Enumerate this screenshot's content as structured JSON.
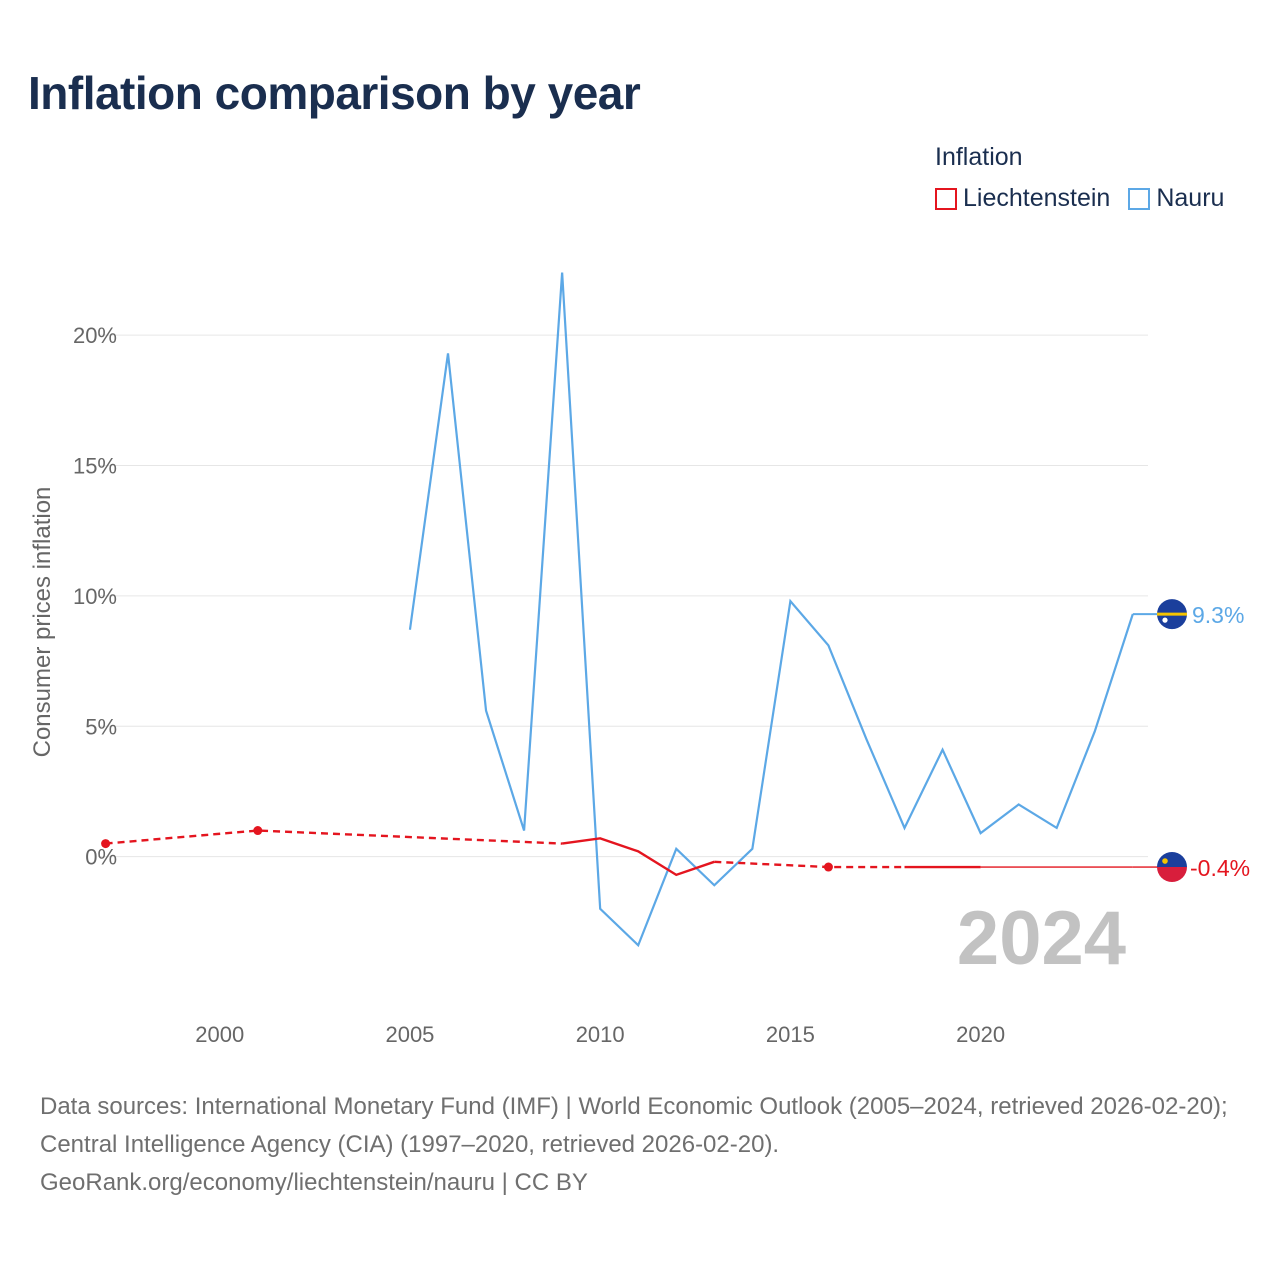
{
  "title": "Inflation comparison by year",
  "legend": {
    "title": "Inflation",
    "items": [
      {
        "label": "Liechtenstein",
        "color": "#e4151f"
      },
      {
        "label": "Nauru",
        "color": "#5ca8e6"
      }
    ]
  },
  "chart_data": {
    "type": "line",
    "title": "Inflation comparison by year",
    "xlabel": "",
    "ylabel": "Consumer prices inflation",
    "xlim": [
      1996.8,
      2024.4
    ],
    "ylim": [
      -5.5,
      22.5
    ],
    "x_ticks": [
      2000,
      2005,
      2010,
      2015,
      2020
    ],
    "y_ticks": [
      0,
      5,
      10,
      15,
      20
    ],
    "y_tick_labels": [
      "0%",
      "5%",
      "10%",
      "15%",
      "20%"
    ],
    "grid": true,
    "year_label": "2024",
    "series": [
      {
        "name": "Liechtenstein",
        "color": "#e4151f",
        "end_label": "-0.4%",
        "points": [
          {
            "x": 1997,
            "y": 0.5
          },
          {
            "x": 2001,
            "y": 1.0
          },
          {
            "x": 2009,
            "y": 0.5
          },
          {
            "x": 2010,
            "y": 0.7
          },
          {
            "x": 2011,
            "y": 0.2
          },
          {
            "x": 2012,
            "y": -0.7
          },
          {
            "x": 2013,
            "y": -0.2
          },
          {
            "x": 2016,
            "y": -0.4
          },
          {
            "x": 2020,
            "y": -0.4
          },
          {
            "x": 2024,
            "y": -0.4
          }
        ],
        "segments": [
          {
            "from": 1997,
            "to": 2009,
            "style": "dashed"
          },
          {
            "from": 2009,
            "to": 2013,
            "style": "solid"
          },
          {
            "from": 2013,
            "to": 2018,
            "style": "dashed"
          },
          {
            "from": 2018,
            "to": 2020,
            "style": "solid"
          },
          {
            "from": 2020,
            "to": 2024,
            "style": "thin"
          }
        ],
        "markers": [
          1997,
          2001,
          2016
        ]
      },
      {
        "name": "Nauru",
        "color": "#5ca8e6",
        "end_label": "9.3%",
        "points": [
          {
            "x": 2005,
            "y": 8.7
          },
          {
            "x": 2006,
            "y": 19.3
          },
          {
            "x": 2007,
            "y": 5.6
          },
          {
            "x": 2008,
            "y": 1.0
          },
          {
            "x": 2009,
            "y": 22.4
          },
          {
            "x": 2010,
            "y": -2.0
          },
          {
            "x": 2011,
            "y": -3.4
          },
          {
            "x": 2012,
            "y": 0.3
          },
          {
            "x": 2013,
            "y": -1.1
          },
          {
            "x": 2014,
            "y": 0.3
          },
          {
            "x": 2015,
            "y": 9.8
          },
          {
            "x": 2016,
            "y": 8.1
          },
          {
            "x": 2017,
            "y": 4.5
          },
          {
            "x": 2018,
            "y": 1.1
          },
          {
            "x": 2019,
            "y": 4.1
          },
          {
            "x": 2020,
            "y": 0.9
          },
          {
            "x": 2021,
            "y": 2.0
          },
          {
            "x": 2022,
            "y": 1.1
          },
          {
            "x": 2023,
            "y": 4.8
          },
          {
            "x": 2024,
            "y": 9.3
          }
        ]
      }
    ]
  },
  "footer": {
    "sources": "Data sources: International Monetary Fund (IMF) | World Economic Outlook (2005–2024, retrieved 2026-02-20); Central Intelligence Agency (CIA) (1997–2020, retrieved 2026-02-20).",
    "credit": "GeoRank.org/economy/liechtenstein/nauru | CC BY"
  }
}
